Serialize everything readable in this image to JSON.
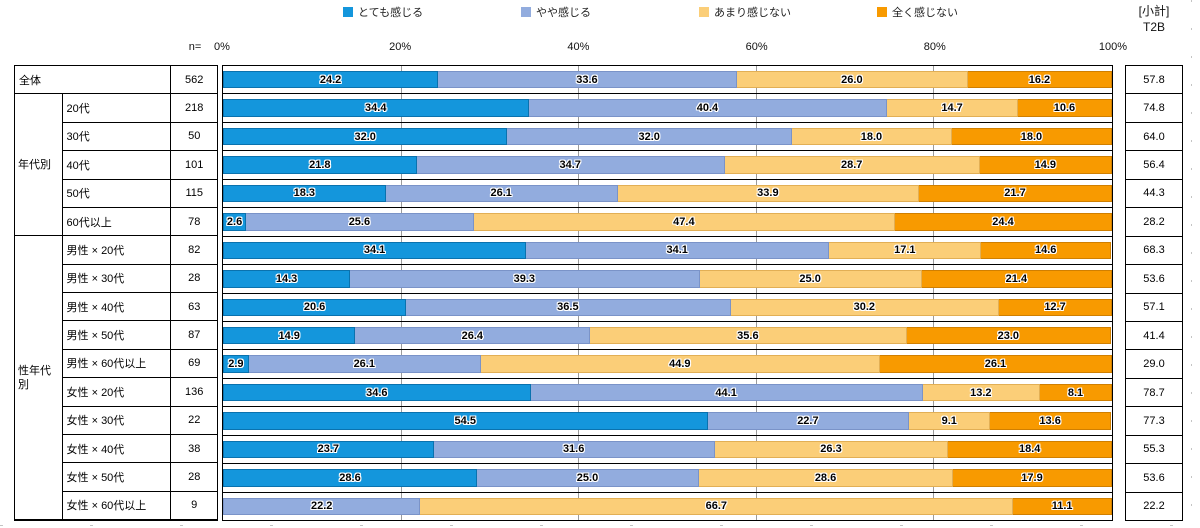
{
  "header": {
    "n_label": "n=",
    "subtotal_label": "[小計]",
    "t2b_label": "T2B"
  },
  "legend": [
    {
      "label": "とても感じる",
      "color": "#1496DC",
      "border": "#0A72AE"
    },
    {
      "label": "やや感じる",
      "color": "#92ACDE",
      "border": "#7A93C8"
    },
    {
      "label": "あまり感じない",
      "color": "#FBCE78",
      "border": "#E2AF55"
    },
    {
      "label": "全く感じない",
      "color": "#F89A00",
      "border": "#D07F00"
    }
  ],
  "axis": {
    "ticks": [
      "0%",
      "20%",
      "40%",
      "60%",
      "80%",
      "100%"
    ],
    "xlim": [
      0,
      100
    ],
    "gridlines_pct": [
      20,
      40,
      60,
      80
    ]
  },
  "groups": [
    {
      "label": "全体",
      "span": 1,
      "merged": true
    },
    {
      "label": "年代別",
      "span": 5,
      "merged": false
    },
    {
      "label": "性年代別",
      "span": 10,
      "merged": false
    }
  ],
  "chart_data": {
    "type": "bar",
    "orientation": "horizontal",
    "stacked": true,
    "title": "",
    "xlabel": "",
    "ylabel": "",
    "xlim": [
      0,
      100
    ],
    "series_names": [
      "とても感じる",
      "やや感じる",
      "あまり感じない",
      "全く感じない"
    ],
    "rows": [
      {
        "group": "全体",
        "label": "全体",
        "n": 562,
        "values": [
          24.2,
          33.6,
          26.0,
          16.2
        ],
        "t2b": 57.8
      },
      {
        "group": "年代別",
        "label": "20代",
        "n": 218,
        "values": [
          34.4,
          40.4,
          14.7,
          10.6
        ],
        "t2b": 74.8
      },
      {
        "group": "年代別",
        "label": "30代",
        "n": 50,
        "values": [
          32.0,
          32.0,
          18.0,
          18.0
        ],
        "t2b": 64.0
      },
      {
        "group": "年代別",
        "label": "40代",
        "n": 101,
        "values": [
          21.8,
          34.7,
          28.7,
          14.9
        ],
        "t2b": 56.4
      },
      {
        "group": "年代別",
        "label": "50代",
        "n": 115,
        "values": [
          18.3,
          26.1,
          33.9,
          21.7
        ],
        "t2b": 44.3
      },
      {
        "group": "年代別",
        "label": "60代以上",
        "n": 78,
        "values": [
          2.6,
          25.6,
          47.4,
          24.4
        ],
        "t2b": 28.2
      },
      {
        "group": "性年代別",
        "label": "男性 × 20代",
        "n": 82,
        "values": [
          34.1,
          34.1,
          17.1,
          14.6
        ],
        "t2b": 68.3
      },
      {
        "group": "性年代別",
        "label": "男性 × 30代",
        "n": 28,
        "values": [
          14.3,
          39.3,
          25.0,
          21.4
        ],
        "t2b": 53.6
      },
      {
        "group": "性年代別",
        "label": "男性 × 40代",
        "n": 63,
        "values": [
          20.6,
          36.5,
          30.2,
          12.7
        ],
        "t2b": 57.1
      },
      {
        "group": "性年代別",
        "label": "男性 × 50代",
        "n": 87,
        "values": [
          14.9,
          26.4,
          35.6,
          23.0
        ],
        "t2b": 41.4
      },
      {
        "group": "性年代別",
        "label": "男性 × 60代以上",
        "n": 69,
        "values": [
          2.9,
          26.1,
          44.9,
          26.1
        ],
        "t2b": 29.0
      },
      {
        "group": "性年代別",
        "label": "女性 × 20代",
        "n": 136,
        "values": [
          34.6,
          44.1,
          13.2,
          8.1
        ],
        "t2b": 78.7
      },
      {
        "group": "性年代別",
        "label": "女性 × 30代",
        "n": 22,
        "values": [
          54.5,
          22.7,
          9.1,
          13.6
        ],
        "t2b": 77.3
      },
      {
        "group": "性年代別",
        "label": "女性 × 40代",
        "n": 38,
        "values": [
          23.7,
          31.6,
          26.3,
          18.4
        ],
        "t2b": 55.3
      },
      {
        "group": "性年代別",
        "label": "女性 × 50代",
        "n": 28,
        "values": [
          28.6,
          25.0,
          28.6,
          17.9
        ],
        "t2b": 53.6
      },
      {
        "group": "性年代別",
        "label": "女性 × 60代以上",
        "n": 9,
        "values": [
          0.0,
          22.2,
          66.7,
          11.1
        ],
        "t2b": 22.2
      }
    ]
  }
}
